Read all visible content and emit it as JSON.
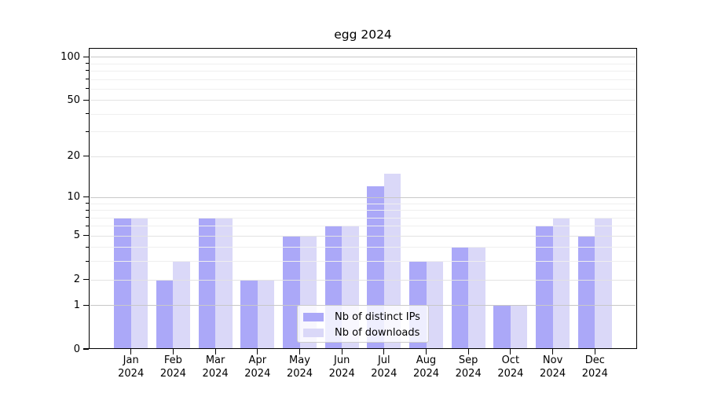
{
  "chart_data": {
    "type": "bar",
    "title": "egg 2024",
    "categories": [
      "Jan 2024",
      "Feb 2024",
      "Mar 2024",
      "Apr 2024",
      "May 2024",
      "Jun 2024",
      "Jul 2024",
      "Aug 2024",
      "Sep 2024",
      "Oct 2024",
      "Nov 2024",
      "Dec 2024"
    ],
    "series": [
      {
        "name": "Nb of distinct IPs",
        "color": "#aba8f8",
        "values": [
          7,
          2,
          7,
          2,
          5,
          6,
          12,
          3,
          4,
          1,
          6,
          5
        ]
      },
      {
        "name": "Nb of downloads",
        "color": "#dad8f8",
        "values": [
          7,
          3,
          7,
          2,
          5,
          6,
          15,
          3,
          4,
          1,
          7,
          7
        ]
      }
    ],
    "yscale": "log1p",
    "yticks": [
      0,
      1,
      2,
      5,
      10,
      20,
      50,
      100
    ],
    "ytick_labels": [
      "0",
      "1",
      "2",
      "5",
      "10",
      "20",
      "50",
      "100"
    ],
    "ylim": [
      0,
      115
    ],
    "xlabel": "",
    "ylabel": "",
    "grid": true,
    "legend": {
      "labels": [
        "Nb of distinct IPs",
        "Nb of downloads"
      ],
      "position": "lower center"
    }
  }
}
